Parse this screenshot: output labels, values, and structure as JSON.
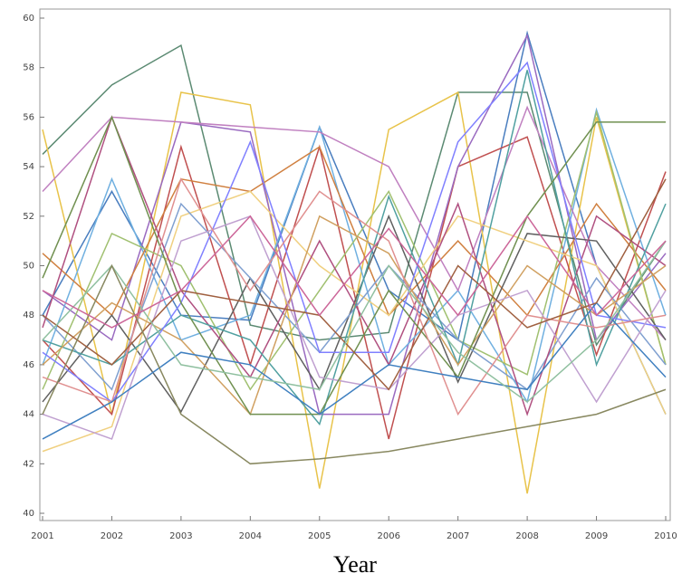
{
  "chart_data": {
    "type": "line",
    "x_label": "Year",
    "categories": [
      "2001",
      "2002",
      "2003",
      "2004",
      "2005",
      "2006",
      "2007",
      "2008",
      "2009",
      "2010"
    ],
    "ylim": [
      40,
      60
    ],
    "yticks": [
      40,
      42,
      44,
      46,
      48,
      50,
      52,
      54,
      56,
      58,
      60
    ],
    "grid": false,
    "series": [
      {
        "color": "#5b8a72",
        "values": [
          54.5,
          57.3,
          58.9,
          47.6,
          47.0,
          47.3,
          57.0,
          57.0,
          46.8,
          51.0
        ]
      },
      {
        "color": "#4a7ebf",
        "values": [
          48.0,
          53.0,
          48.0,
          47.8,
          55.6,
          49.0,
          47.0,
          59.4,
          50.0,
          44.0
        ]
      },
      {
        "color": "#e8c34a",
        "values": [
          55.5,
          44.0,
          57.0,
          56.5,
          41.0,
          55.5,
          57.0,
          40.8,
          56.0,
          46.0
        ]
      },
      {
        "color": "#c05050",
        "values": [
          47.0,
          44.0,
          54.8,
          46.0,
          54.8,
          43.0,
          54.0,
          55.2,
          46.4,
          53.8
        ]
      },
      {
        "color": "#9a6ac0",
        "values": [
          49.0,
          47.0,
          55.8,
          55.4,
          44.0,
          44.0,
          54.0,
          59.3,
          47.0,
          50.5
        ]
      },
      {
        "color": "#70b0e0",
        "values": [
          46.0,
          53.5,
          47.0,
          48.0,
          55.6,
          46.0,
          49.0,
          44.5,
          56.3,
          48.0
        ]
      },
      {
        "color": "#d08040",
        "values": [
          50.5,
          48.0,
          53.5,
          53.0,
          54.8,
          48.0,
          51.0,
          48.0,
          52.5,
          49.0
        ]
      },
      {
        "color": "#a0c070",
        "values": [
          45.0,
          51.3,
          50.0,
          45.0,
          49.0,
          53.0,
          47.0,
          45.6,
          56.2,
          46.0
        ]
      },
      {
        "color": "#c080c0",
        "values": [
          53.0,
          56.0,
          55.8,
          55.6,
          55.4,
          54.0,
          49.0,
          56.4,
          50.0,
          47.0
        ]
      },
      {
        "color": "#606060",
        "values": [
          44.5,
          48.0,
          44.1,
          49.5,
          45.0,
          52.0,
          45.3,
          51.3,
          51.0,
          47.0
        ]
      },
      {
        "color": "#f0d080",
        "values": [
          42.5,
          43.5,
          52.0,
          53.0,
          50.0,
          48.0,
          52.0,
          51.0,
          50.0,
          44.0
        ]
      },
      {
        "color": "#80a0d0",
        "values": [
          48.0,
          45.0,
          52.5,
          49.5,
          46.5,
          50.0,
          47.0,
          45.0,
          49.5,
          46.0
        ]
      },
      {
        "color": "#b05080",
        "values": [
          47.5,
          56.0,
          49.0,
          45.5,
          51.0,
          46.0,
          52.5,
          44.0,
          52.0,
          50.0
        ]
      },
      {
        "color": "#50a0a0",
        "values": [
          47.0,
          46.0,
          48.0,
          47.0,
          43.6,
          52.8,
          46.0,
          57.9,
          46.0,
          52.5
        ]
      },
      {
        "color": "#d0a060",
        "values": [
          46.0,
          48.5,
          47.0,
          44.0,
          52.0,
          50.5,
          46.0,
          50.0,
          48.0,
          50.0
        ]
      },
      {
        "color": "#8080ff",
        "values": [
          46.5,
          44.5,
          48.5,
          55.0,
          46.5,
          46.5,
          55.0,
          58.2,
          48.0,
          47.5
        ]
      },
      {
        "color": "#c0a0d0",
        "values": [
          44.0,
          43.0,
          51.0,
          52.0,
          45.5,
          45.0,
          48.0,
          49.0,
          44.5,
          49.0
        ]
      },
      {
        "color": "#709050",
        "values": [
          49.5,
          56.0,
          48.5,
          44.0,
          44.0,
          49.0,
          45.5,
          52.0,
          55.8,
          55.8
        ]
      },
      {
        "color": "#e09090",
        "values": [
          45.5,
          44.5,
          53.5,
          49.0,
          53.0,
          51.0,
          44.0,
          48.0,
          47.5,
          48.0
        ]
      },
      {
        "color": "#4080c0",
        "values": [
          43.0,
          44.5,
          46.5,
          46.0,
          44.0,
          46.0,
          45.5,
          45.0,
          48.5,
          45.5
        ]
      },
      {
        "color": "#a06040",
        "values": [
          48.0,
          46.0,
          49.0,
          48.5,
          48.0,
          45.0,
          50.0,
          47.5,
          48.5,
          53.5
        ]
      },
      {
        "color": "#90c0a0",
        "values": [
          47.0,
          50.0,
          46.0,
          45.5,
          45.0,
          50.0,
          46.5,
          44.5,
          47.0,
          51.0
        ]
      },
      {
        "color": "#888860",
        "values": [
          44.0,
          50.0,
          44.0,
          42.0,
          42.2,
          42.5,
          43.0,
          43.5,
          44.0,
          45.0
        ]
      },
      {
        "color": "#cc6699",
        "values": [
          49.0,
          47.5,
          49.0,
          52.0,
          48.0,
          51.5,
          48.0,
          52.0,
          48.0,
          51.0
        ]
      }
    ]
  }
}
